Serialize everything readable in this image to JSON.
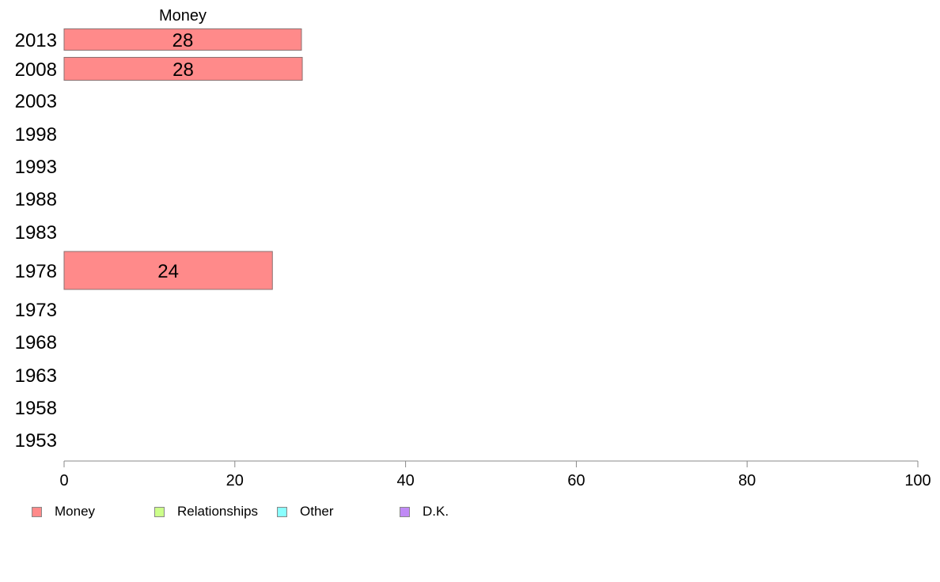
{
  "chart_data": {
    "type": "bar",
    "orientation": "horizontal",
    "title": "Money",
    "categories": [
      "2013",
      "2008",
      "2003",
      "1998",
      "1993",
      "1988",
      "1983",
      "1978",
      "1973",
      "1968",
      "1963",
      "1958",
      "1953"
    ],
    "series": [
      {
        "name": "Money",
        "values": [
          27.8,
          27.9,
          null,
          null,
          null,
          null,
          null,
          24.4,
          null,
          null,
          null,
          null,
          null
        ],
        "labels": [
          "28",
          "28",
          null,
          null,
          null,
          null,
          null,
          "24",
          null,
          null,
          null,
          null,
          null
        ]
      }
    ],
    "xlim": [
      0,
      100
    ],
    "xticks": [
      "0",
      "20",
      "40",
      "60",
      "80",
      "100"
    ],
    "legend": {
      "placement": "bottom",
      "items": [
        {
          "label": "Money",
          "color": "#FF8A8A"
        },
        {
          "label": "Relationships",
          "color": "#CCFF8A"
        },
        {
          "label": "Other",
          "color": "#8AFFFF"
        },
        {
          "label": "D.K.",
          "color": "#C08AF5"
        }
      ]
    },
    "bar_color": "#FF8A8A",
    "axis_color": "#888888"
  }
}
